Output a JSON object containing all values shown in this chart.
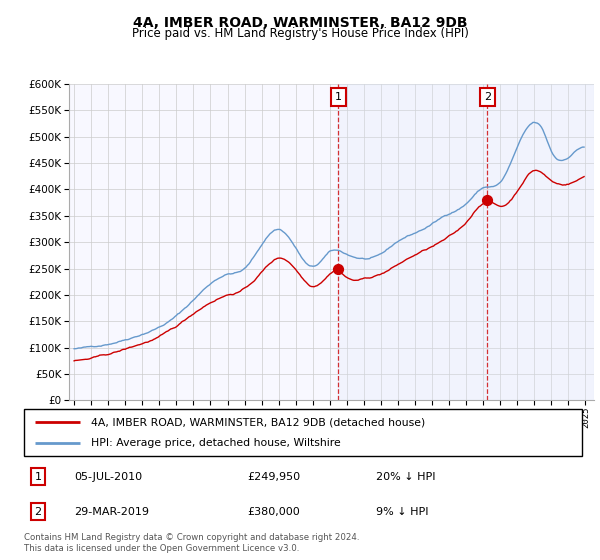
{
  "title": "4A, IMBER ROAD, WARMINSTER, BA12 9DB",
  "subtitle": "Price paid vs. HM Land Registry's House Price Index (HPI)",
  "legend_line1": "4A, IMBER ROAD, WARMINSTER, BA12 9DB (detached house)",
  "legend_line2": "HPI: Average price, detached house, Wiltshire",
  "annotation1_date": "05-JUL-2010",
  "annotation1_price": "£249,950",
  "annotation1_hpi": "20% ↓ HPI",
  "annotation1_year": 2010.5,
  "annotation2_date": "29-MAR-2019",
  "annotation2_price": "£380,000",
  "annotation2_hpi": "9% ↓ HPI",
  "annotation2_year": 2019.25,
  "footer": "Contains HM Land Registry data © Crown copyright and database right 2024.\nThis data is licensed under the Open Government Licence v3.0.",
  "hpi_color": "#6699cc",
  "price_color": "#cc0000",
  "background_chart": "#f8f8ff",
  "shade_color": "#dde8f8",
  "grid_color": "#cccccc",
  "ylim_min": 0,
  "ylim_max": 600000,
  "xlim_min": 1994.7,
  "xlim_max": 2025.5
}
